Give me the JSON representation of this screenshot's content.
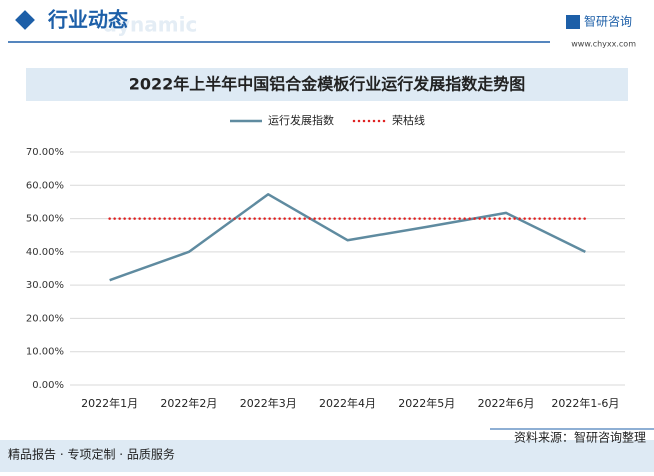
{
  "header": {
    "title": "行业动态",
    "subtitle": "dynamic",
    "brand": "智研咨询",
    "url": "www.chyxx.com"
  },
  "chart_data": {
    "type": "line",
    "title": "2022年上半年中国铝合金模板行业运行发展指数走势图",
    "categories": [
      "2022年1月",
      "2022年2月",
      "2022年3月",
      "2022年4月",
      "2022年5月",
      "2022年6月",
      "2022年1-6月"
    ],
    "series": [
      {
        "name": "运行发展指数",
        "color": "#5f8ba0",
        "style": "solid",
        "values": [
          31.5,
          40,
          57.3,
          43.5,
          47.5,
          51.7,
          40
        ]
      },
      {
        "name": "荣枯线",
        "color": "#e02020",
        "style": "dotted",
        "values": [
          50,
          50,
          50,
          50,
          50,
          50,
          50
        ]
      }
    ],
    "ylim": [
      0,
      70
    ],
    "yticks": [
      {
        "value": 0,
        "label": "0.00%"
      },
      {
        "value": 10,
        "label": "10.00%"
      },
      {
        "value": 20,
        "label": "20.00%"
      },
      {
        "value": 30,
        "label": "30.00%"
      },
      {
        "value": 40,
        "label": "40.00%"
      },
      {
        "value": 50,
        "label": "50.00%"
      },
      {
        "value": 60,
        "label": "60.00%"
      },
      {
        "value": 70,
        "label": "70.00%"
      }
    ],
    "grid": true
  },
  "footer": {
    "left": "精品报告 · 专项定制 · 品质服务",
    "right": "资料来源：智研咨询整理"
  }
}
